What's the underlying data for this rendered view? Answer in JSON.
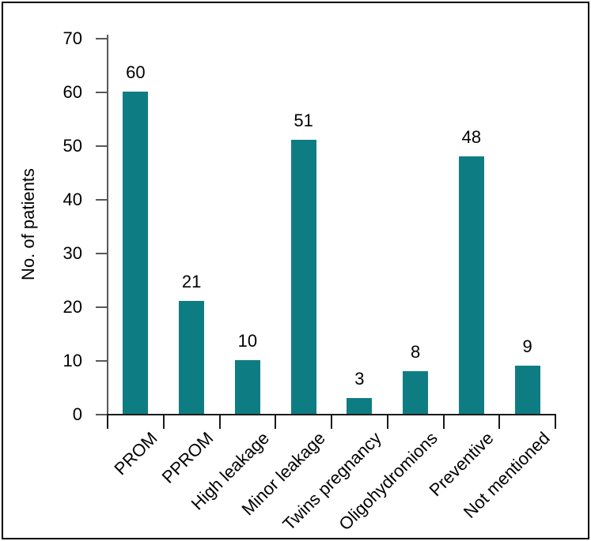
{
  "window": {
    "background": "#ffffff",
    "frame_border_color": "#000000"
  },
  "chart_data": {
    "type": "bar",
    "title": "",
    "categories": [
      "PROM",
      "PPROM",
      "High leakage",
      "Minor leakage",
      "Twins pregnancy",
      "Oligohydromions",
      "Preventive",
      "Not mentioned"
    ],
    "values": [
      60,
      21,
      10,
      51,
      3,
      8,
      48,
      9
    ],
    "data_labels_shown": true,
    "xlabel": "",
    "ylabel": "No. of patients",
    "ylim": [
      0,
      70
    ],
    "yticks": [
      0,
      10,
      20,
      30,
      40,
      50,
      60,
      70
    ],
    "grid": false,
    "legend": "none",
    "category_label_rotation_deg": -45,
    "colors": {
      "bar_fill": "#0E7D83",
      "y_axis_line": "#595959",
      "x_axis_line": "#1a1a1a",
      "text": "#000000"
    }
  }
}
